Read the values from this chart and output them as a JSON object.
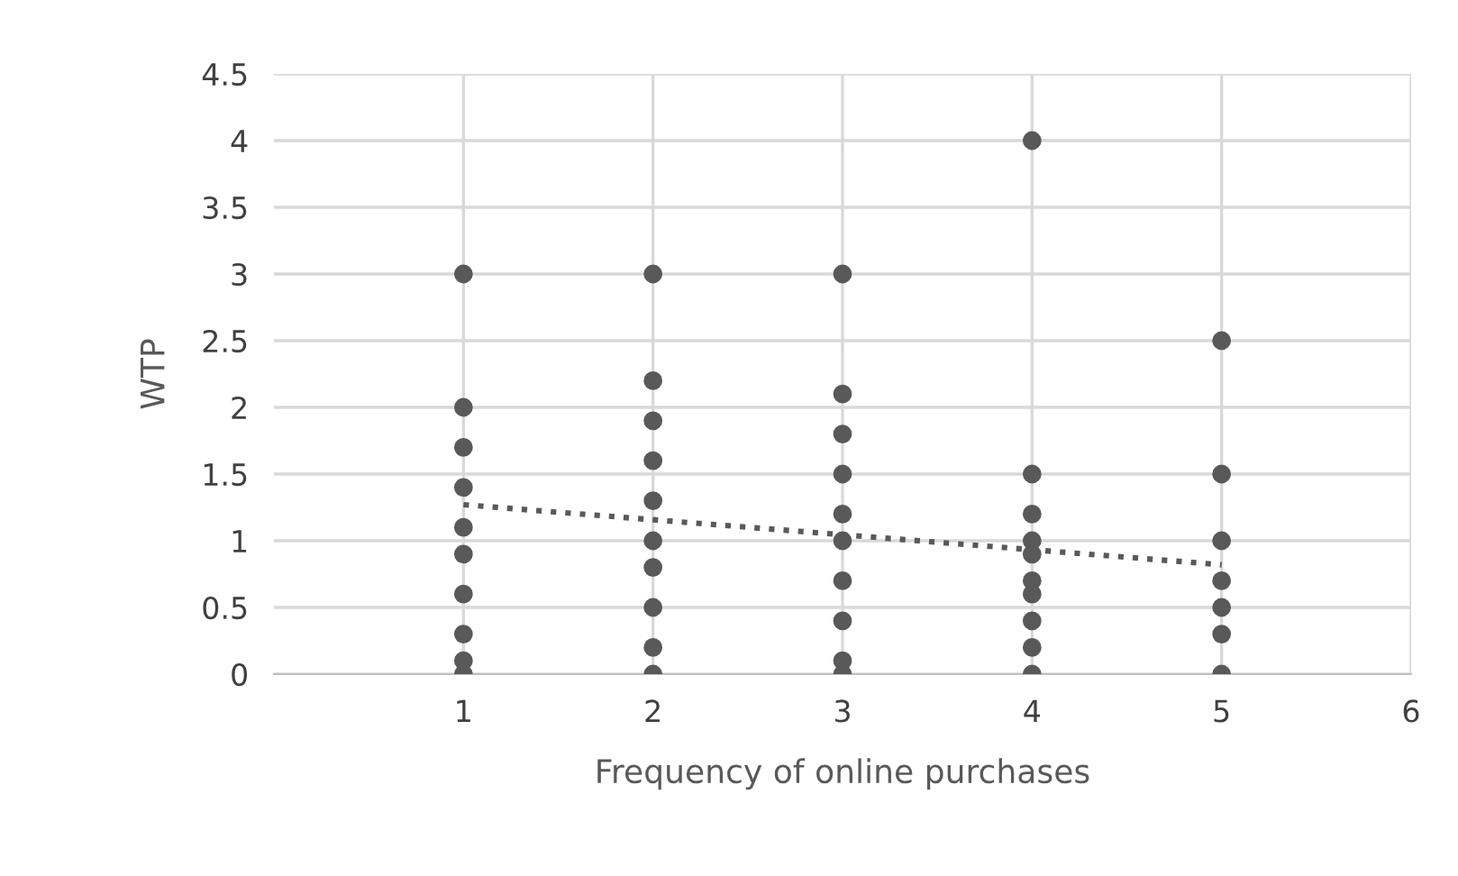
{
  "chart_data": {
    "type": "scatter",
    "xlabel": "Frequency of online purchases",
    "ylabel": "WTP",
    "xlim": [
      0,
      6
    ],
    "xticks": [
      1,
      2,
      3,
      4,
      5,
      6
    ],
    "ylim": [
      0,
      4.5
    ],
    "yticks": [
      0,
      0.5,
      1,
      1.5,
      2,
      2.5,
      3,
      3.5,
      4,
      4.5
    ],
    "grid": true,
    "legend": false,
    "marker": "circle",
    "series": [
      {
        "color": "#595959",
        "x": [
          1,
          1,
          1,
          1,
          1,
          1,
          1,
          1,
          1,
          1,
          2,
          2,
          2,
          2,
          2,
          2,
          2,
          2,
          2,
          2,
          3,
          3,
          3,
          3,
          3,
          3,
          3,
          3,
          3,
          3,
          4,
          4,
          4,
          4,
          4,
          4,
          4,
          4,
          4,
          4,
          5,
          5,
          5,
          5,
          5,
          5,
          5
        ],
        "values": [
          3,
          2,
          1.7,
          1.4,
          1.1,
          0.9,
          0.6,
          0.3,
          0.1,
          0,
          3,
          2.2,
          1.9,
          1.6,
          1.3,
          1.0,
          0.8,
          0.5,
          0.2,
          0,
          3,
          2.1,
          1.8,
          1.5,
          1.2,
          1.0,
          0.7,
          0.4,
          0.1,
          0,
          4,
          1.5,
          1.2,
          1.0,
          0.9,
          0.7,
          0.6,
          0.4,
          0.2,
          0,
          2.5,
          1.5,
          1.0,
          0.7,
          0.5,
          0.3,
          0
        ]
      },
      {
        "type": "line",
        "color": "#595959",
        "line_style": "dotted",
        "marker": "none",
        "x": [
          1,
          5
        ],
        "values": [
          1.27,
          0.82
        ]
      }
    ]
  }
}
